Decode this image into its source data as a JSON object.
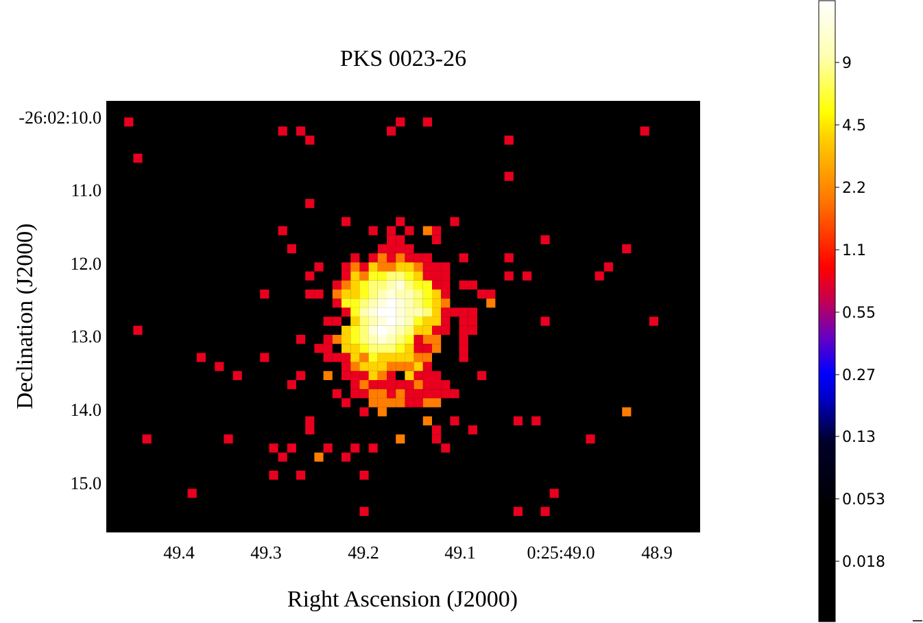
{
  "chart_data": {
    "type": "heatmap",
    "title": "PKS 0023-26",
    "xlabel": "Right Ascension (J2000)",
    "ylabel": "Declination (J2000)",
    "x_ticks": [
      "49.4",
      "49.3",
      "49.2",
      "49.1",
      "0:25:49.0",
      "48.9"
    ],
    "y_ticks": [
      "-26:02:10.0",
      "11.0",
      "12.0",
      "13.0",
      "14.0",
      "15.0"
    ],
    "colorbar": {
      "scale": "log",
      "colormap": "hot",
      "range": [
        0.0,
        13.5
      ],
      "tick_labels": [
        "9",
        "4.5",
        "2.2",
        "1.1",
        "0.55",
        "0.27",
        "0.13",
        "0.053",
        "0.018"
      ],
      "colors": {
        "low": "#000000",
        "mid_low": "#0000ff",
        "mid": "#ff0000",
        "mid_high": "#ff8c00",
        "high": "#ffff00",
        "top": "#ffffff"
      }
    },
    "grid": false,
    "background": "#000000",
    "grid_columns": 65,
    "grid_rows": 47,
    "pixels": [
      [
        1,
        1,
        1.1
      ],
      [
        18,
        2,
        1.1
      ],
      [
        31,
        1,
        1.1
      ],
      [
        34,
        1,
        1.1
      ],
      [
        20,
        2,
        1.1
      ],
      [
        30,
        2,
        1.1
      ],
      [
        21,
        3,
        1.1
      ],
      [
        43,
        3,
        1.1
      ],
      [
        58,
        2,
        1.1
      ],
      [
        2,
        5,
        1.1
      ],
      [
        43,
        7,
        1.1
      ],
      [
        21,
        10,
        1.1
      ],
      [
        25,
        12,
        1.1
      ],
      [
        31,
        12,
        1.1
      ],
      [
        37,
        12,
        1.1
      ],
      [
        18,
        13,
        1.1
      ],
      [
        28,
        13,
        1.1
      ],
      [
        30,
        13,
        1.1
      ],
      [
        32,
        13,
        1.1
      ],
      [
        34,
        13,
        2.0
      ],
      [
        35,
        13,
        1.1
      ],
      [
        30,
        14,
        1.1
      ],
      [
        31,
        14,
        1.1
      ],
      [
        35,
        14,
        1.1
      ],
      [
        47,
        14,
        1.1
      ],
      [
        56,
        15,
        1.1
      ],
      [
        19,
        15,
        1.1
      ],
      [
        29,
        15,
        1.1
      ],
      [
        32,
        15,
        1.1
      ],
      [
        38,
        16,
        1.1
      ],
      [
        43,
        16,
        1.1
      ],
      [
        54,
        17,
        1.1
      ],
      [
        22,
        17,
        1.1
      ],
      [
        27,
        17,
        1.1
      ],
      [
        29,
        17,
        2.0
      ],
      [
        30,
        17,
        1.1
      ],
      [
        33,
        17,
        1.1
      ],
      [
        32,
        18,
        1.1
      ],
      [
        33,
        18,
        1.1
      ],
      [
        35,
        17,
        1.1
      ],
      [
        36,
        18,
        1.1
      ],
      [
        21,
        18,
        1.1
      ],
      [
        26,
        18,
        1.1
      ],
      [
        43,
        18,
        1.1
      ],
      [
        45,
        18,
        1.1
      ],
      [
        53,
        18,
        1.1
      ],
      [
        38,
        19,
        1.1
      ],
      [
        39,
        19,
        1.1
      ],
      [
        16,
        20,
        1.1
      ],
      [
        21,
        20,
        1.1
      ],
      [
        22,
        20,
        1.1
      ],
      [
        25,
        20,
        1.1
      ],
      [
        28,
        20,
        1.1
      ],
      [
        40,
        20,
        1.1
      ],
      [
        41,
        20,
        1.1
      ],
      [
        41,
        21,
        2.0
      ],
      [
        24,
        21,
        1.1
      ],
      [
        25,
        21,
        1.1
      ],
      [
        25,
        22,
        1.1
      ],
      [
        23,
        23,
        1.1
      ],
      [
        24,
        23,
        1.1
      ],
      [
        27,
        21,
        1.1
      ],
      [
        37,
        22,
        1.1
      ],
      [
        38,
        22,
        1.1
      ],
      [
        39,
        22,
        1.1
      ],
      [
        38,
        23,
        1.1
      ],
      [
        39,
        23,
        1.1
      ],
      [
        47,
        23,
        1.1
      ],
      [
        59,
        23,
        1.1
      ],
      [
        2,
        24,
        1.1
      ],
      [
        26,
        24,
        1.1
      ],
      [
        27,
        24,
        1.1
      ],
      [
        38,
        24,
        1.1
      ],
      [
        39,
        24,
        1.1
      ],
      [
        23,
        25,
        1.1
      ],
      [
        24,
        25,
        2.0
      ],
      [
        26,
        26,
        1.1
      ],
      [
        20,
        25,
        1.1
      ],
      [
        22,
        26,
        1.1
      ],
      [
        9,
        27,
        1.1
      ],
      [
        11,
        28,
        1.1
      ],
      [
        23,
        26,
        1.1
      ],
      [
        23,
        27,
        1.1
      ],
      [
        24,
        27,
        1.1
      ],
      [
        25,
        27,
        1.1
      ],
      [
        16,
        27,
        1.1
      ],
      [
        13,
        29,
        1.1
      ],
      [
        20,
        29,
        1.1
      ],
      [
        19,
        30,
        1.1
      ],
      [
        23,
        29,
        2.0
      ],
      [
        25,
        29,
        1.1
      ],
      [
        26,
        28,
        1.1
      ],
      [
        38,
        25,
        1.1
      ],
      [
        38,
        26,
        1.1
      ],
      [
        38,
        27,
        1.1
      ],
      [
        40,
        29,
        1.1
      ],
      [
        26,
        30,
        1.1
      ],
      [
        26,
        31,
        1.1
      ],
      [
        25,
        32,
        1.1
      ],
      [
        27,
        30,
        1.1
      ],
      [
        27,
        31,
        1.1
      ],
      [
        28,
        30,
        1.1
      ],
      [
        28,
        31,
        1.1
      ],
      [
        29,
        30,
        1.1
      ],
      [
        32,
        31,
        1.1
      ],
      [
        33,
        31,
        1.1
      ],
      [
        32,
        32,
        1.1
      ],
      [
        33,
        32,
        1.1
      ],
      [
        34,
        31,
        1.1
      ],
      [
        35,
        30,
        1.1
      ],
      [
        35,
        31,
        1.1
      ],
      [
        36,
        30,
        1.1
      ],
      [
        36,
        31,
        1.1
      ],
      [
        37,
        31,
        1.1
      ],
      [
        34,
        32,
        2.0
      ],
      [
        35,
        32,
        2.0
      ],
      [
        27,
        33,
        1.1
      ],
      [
        29,
        33,
        2.0
      ],
      [
        24,
        31,
        1.1
      ],
      [
        28,
        32,
        2.0
      ],
      [
        30,
        32,
        1.1
      ],
      [
        31,
        32,
        1.1
      ],
      [
        21,
        34,
        1.1
      ],
      [
        21,
        35,
        1.1
      ],
      [
        37,
        34,
        1.1
      ],
      [
        34,
        34,
        2.0
      ],
      [
        35,
        35,
        1.1
      ],
      [
        35,
        36,
        1.1
      ],
      [
        39,
        35,
        1.1
      ],
      [
        44,
        34,
        1.1
      ],
      [
        46,
        34,
        1.1
      ],
      [
        56,
        33,
        2.0
      ],
      [
        52,
        36,
        1.1
      ],
      [
        36,
        37,
        1.1
      ],
      [
        31,
        36,
        2.0
      ],
      [
        3,
        36,
        1.1
      ],
      [
        12,
        36,
        1.1
      ],
      [
        17,
        37,
        1.1
      ],
      [
        19,
        37,
        1.1
      ],
      [
        23,
        37,
        1.1
      ],
      [
        26,
        37,
        1.1
      ],
      [
        25,
        38,
        1.1
      ],
      [
        28,
        37,
        1.1
      ],
      [
        22,
        38,
        2.0
      ],
      [
        18,
        38,
        1.1
      ],
      [
        17,
        40,
        1.1
      ],
      [
        20,
        40,
        1.1
      ],
      [
        27,
        40,
        1.1
      ],
      [
        8,
        42,
        1.1
      ],
      [
        48,
        42,
        1.1
      ],
      [
        27,
        44,
        1.1
      ],
      [
        44,
        44,
        1.1
      ],
      [
        47,
        44,
        1.1
      ]
    ],
    "core_pixels": [
      [
        29,
        15,
        1.1
      ],
      [
        30,
        15,
        1.1
      ],
      [
        31,
        15,
        1.1
      ],
      [
        32,
        15,
        1.1
      ],
      [
        28,
        16,
        1.1
      ],
      [
        29,
        16,
        2.0
      ],
      [
        30,
        16,
        1.1
      ],
      [
        31,
        16,
        2.0
      ],
      [
        32,
        16,
        1.1
      ],
      [
        33,
        16,
        1.1
      ],
      [
        34,
        16,
        1.1
      ],
      [
        26,
        16,
        1.1
      ],
      [
        25,
        17,
        1.1
      ],
      [
        26,
        17,
        2.0
      ],
      [
        28,
        17,
        4.0
      ],
      [
        29,
        17,
        2.0
      ],
      [
        30,
        17,
        2.0
      ],
      [
        31,
        17,
        4.0
      ],
      [
        32,
        17,
        3.5
      ],
      [
        33,
        17,
        2.0
      ],
      [
        34,
        17,
        1.1
      ],
      [
        36,
        17,
        1.1
      ],
      [
        25,
        18,
        1.1
      ],
      [
        26,
        18,
        4.0
      ],
      [
        27,
        18,
        2.0
      ],
      [
        28,
        18,
        5.0
      ],
      [
        29,
        18,
        6.0
      ],
      [
        30,
        18,
        8.0
      ],
      [
        31,
        18,
        7.0
      ],
      [
        32,
        18,
        5.0
      ],
      [
        33,
        18,
        4.5
      ],
      [
        34,
        18,
        1.1
      ],
      [
        35,
        18,
        1.1
      ],
      [
        24,
        19,
        1.1
      ],
      [
        25,
        19,
        2.0
      ],
      [
        26,
        19,
        4.5
      ],
      [
        27,
        19,
        5.0
      ],
      [
        28,
        19,
        7.0
      ],
      [
        29,
        19,
        8.0
      ],
      [
        30,
        19,
        9.0
      ],
      [
        31,
        19,
        11.0
      ],
      [
        32,
        19,
        8.0
      ],
      [
        33,
        19,
        6.0
      ],
      [
        34,
        19,
        5.0
      ],
      [
        35,
        19,
        1.1
      ],
      [
        36,
        19,
        1.1
      ],
      [
        24,
        20,
        2.0
      ],
      [
        25,
        20,
        4.0
      ],
      [
        26,
        20,
        4.5
      ],
      [
        27,
        20,
        6.0
      ],
      [
        28,
        20,
        8.0
      ],
      [
        29,
        20,
        10.0
      ],
      [
        30,
        20,
        12.0
      ],
      [
        31,
        20,
        10.0
      ],
      [
        32,
        20,
        9.0
      ],
      [
        33,
        20,
        7.0
      ],
      [
        34,
        20,
        5.0
      ],
      [
        35,
        20,
        4.5
      ],
      [
        36,
        20,
        1.1
      ],
      [
        25,
        21,
        5.0
      ],
      [
        26,
        21,
        6.0
      ],
      [
        27,
        21,
        8.0
      ],
      [
        28,
        21,
        10.0
      ],
      [
        29,
        21,
        12.0
      ],
      [
        30,
        21,
        13.5
      ],
      [
        31,
        21,
        12.0
      ],
      [
        32,
        21,
        10.0
      ],
      [
        33,
        21,
        8.0
      ],
      [
        34,
        21,
        6.0
      ],
      [
        35,
        21,
        4.0
      ],
      [
        36,
        21,
        2.0
      ],
      [
        26,
        22,
        6.0
      ],
      [
        27,
        22,
        9.0
      ],
      [
        28,
        22,
        11.0
      ],
      [
        29,
        22,
        13.5
      ],
      [
        30,
        22,
        13.5
      ],
      [
        31,
        22,
        12.0
      ],
      [
        32,
        22,
        10.0
      ],
      [
        33,
        22,
        9.0
      ],
      [
        34,
        22,
        7.0
      ],
      [
        35,
        22,
        4.5
      ],
      [
        36,
        22,
        1.1
      ],
      [
        26,
        23,
        4.0
      ],
      [
        27,
        23,
        7.0
      ],
      [
        28,
        23,
        10.0
      ],
      [
        29,
        23,
        12.0
      ],
      [
        30,
        23,
        13.5
      ],
      [
        31,
        23,
        11.0
      ],
      [
        32,
        23,
        9.0
      ],
      [
        33,
        23,
        6.0
      ],
      [
        34,
        23,
        4.0
      ],
      [
        35,
        23,
        4.5
      ],
      [
        36,
        23,
        1.1
      ],
      [
        25,
        24,
        4.0
      ],
      [
        26,
        24,
        6.0
      ],
      [
        27,
        24,
        8.0
      ],
      [
        28,
        24,
        11.0
      ],
      [
        29,
        24,
        13.5
      ],
      [
        30,
        24,
        12.0
      ],
      [
        31,
        24,
        9.0
      ],
      [
        32,
        24,
        7.0
      ],
      [
        33,
        24,
        4.0
      ],
      [
        34,
        24,
        4.0
      ],
      [
        35,
        24,
        1.1
      ],
      [
        36,
        24,
        1.1
      ],
      [
        25,
        25,
        4.0
      ],
      [
        26,
        25,
        5.0
      ],
      [
        27,
        25,
        8.0
      ],
      [
        28,
        25,
        9.0
      ],
      [
        29,
        25,
        11.0
      ],
      [
        30,
        25,
        9.0
      ],
      [
        31,
        25,
        8.0
      ],
      [
        32,
        25,
        5.0
      ],
      [
        33,
        25,
        1.1
      ],
      [
        34,
        25,
        2.0
      ],
      [
        35,
        25,
        2.0
      ],
      [
        25,
        26,
        4.5
      ],
      [
        26,
        26,
        4.0
      ],
      [
        27,
        26,
        6.0
      ],
      [
        28,
        26,
        7.0
      ],
      [
        29,
        26,
        8.0
      ],
      [
        30,
        26,
        7.0
      ],
      [
        31,
        26,
        6.0
      ],
      [
        32,
        26,
        4.0
      ],
      [
        33,
        26,
        1.1
      ],
      [
        34,
        26,
        1.1
      ],
      [
        35,
        26,
        2.0
      ],
      [
        24,
        27,
        1.1
      ],
      [
        25,
        27,
        1.1
      ],
      [
        26,
        27,
        4.0
      ],
      [
        27,
        27,
        2.0
      ],
      [
        28,
        27,
        5.0
      ],
      [
        29,
        27,
        4.5
      ],
      [
        30,
        27,
        4.0
      ],
      [
        31,
        27,
        4.5
      ],
      [
        32,
        27,
        4.0
      ],
      [
        33,
        27,
        2.0
      ],
      [
        34,
        27,
        2.0
      ],
      [
        25,
        28,
        1.1
      ],
      [
        26,
        28,
        2.0
      ],
      [
        27,
        28,
        4.0
      ],
      [
        28,
        28,
        4.5
      ],
      [
        29,
        28,
        3.5
      ],
      [
        30,
        28,
        2.0
      ],
      [
        31,
        28,
        2.0
      ],
      [
        32,
        28,
        2.0
      ],
      [
        33,
        28,
        4.0
      ],
      [
        34,
        28,
        1.1
      ],
      [
        26,
        29,
        1.1
      ],
      [
        27,
        29,
        1.1
      ],
      [
        28,
        29,
        4.5
      ],
      [
        29,
        29,
        2.0
      ],
      [
        30,
        29,
        1.1
      ],
      [
        31,
        29,
        0.02
      ],
      [
        32,
        29,
        4.0
      ],
      [
        33,
        29,
        1.1
      ],
      [
        34,
        29,
        1.1
      ],
      [
        35,
        29,
        1.1
      ],
      [
        27,
        30,
        2.0
      ],
      [
        29,
        30,
        1.1
      ],
      [
        30,
        30,
        1.1
      ],
      [
        31,
        30,
        1.1
      ],
      [
        32,
        30,
        1.1
      ],
      [
        33,
        30,
        2.0
      ],
      [
        34,
        30,
        1.1
      ],
      [
        28,
        31,
        2.0
      ],
      [
        29,
        31,
        2.0
      ],
      [
        30,
        31,
        1.1
      ],
      [
        31,
        31,
        2.0
      ],
      [
        28,
        32,
        2.0
      ],
      [
        29,
        32,
        2.0
      ],
      [
        30,
        32,
        2.0
      ],
      [
        31,
        32,
        2.0
      ]
    ]
  }
}
